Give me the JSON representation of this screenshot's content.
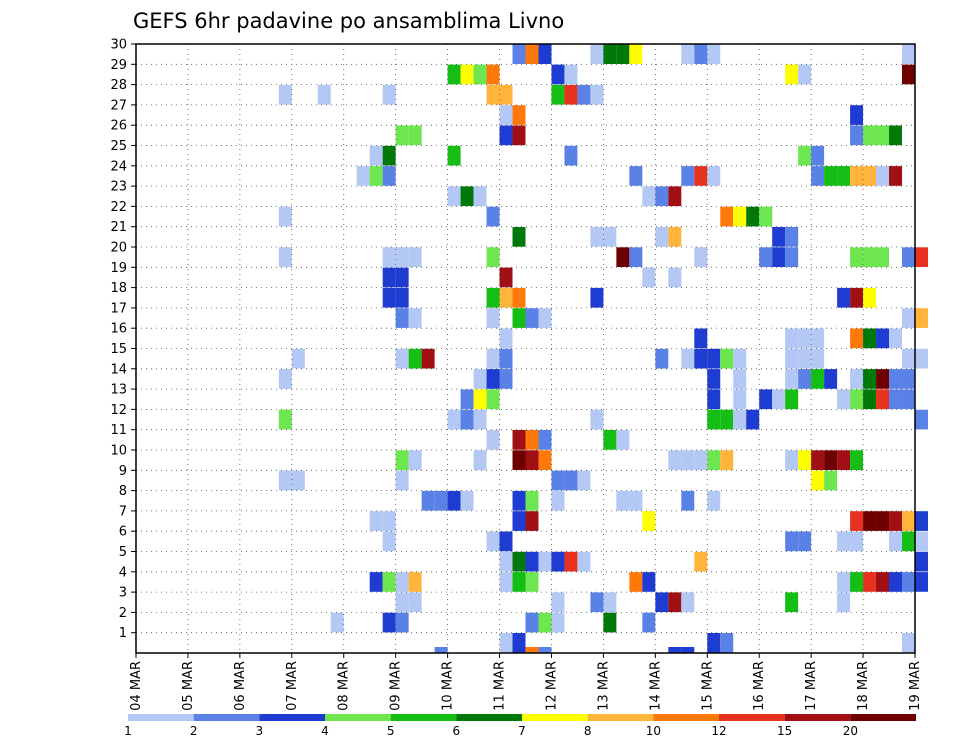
{
  "chart_data": {
    "type": "heatmap",
    "title": "GEFS 6hr padavine po ansamblima Livno",
    "xlabel": "",
    "ylabel": "",
    "x_ticks": [
      "04 MAR",
      "05 MAR",
      "06 MAR",
      "07 MAR",
      "08 MAR",
      "09 MAR",
      "10 MAR",
      "11 MAR",
      "12 MAR",
      "13 MAR",
      "14 MAR",
      "15 MAR",
      "16 MAR",
      "17 MAR",
      "18 MAR",
      "19 MAR"
    ],
    "y_ticks": [
      "1",
      "2",
      "3",
      "4",
      "5",
      "6",
      "7",
      "8",
      "9",
      "10",
      "11",
      "12",
      "13",
      "14",
      "15",
      "16",
      "17",
      "18",
      "19",
      "20",
      "21",
      "22",
      "23",
      "24",
      "25",
      "26",
      "27",
      "28",
      "29",
      "30"
    ],
    "x_range": [
      "04 MAR",
      "19 MAR"
    ],
    "y_range": [
      0,
      30
    ],
    "time_step_hours": 6,
    "grid": true,
    "colorbar": {
      "labels": [
        "1",
        "2",
        "3",
        "4",
        "5",
        "6",
        "7",
        "8",
        "10",
        "12",
        "15",
        "20"
      ],
      "colors": [
        "#b4c8f5",
        "#5a82e6",
        "#1e3cd2",
        "#6ee650",
        "#14be14",
        "#00780a",
        "#ffff00",
        "#ffb43c",
        "#ff780a",
        "#e6321e",
        "#a00f14",
        "#6e0000"
      ]
    },
    "member_cells": {
      "1": [
        [
          "11 MAR 00Z",
          1
        ],
        [
          "11 MAR 06Z",
          3
        ],
        [
          "15 MAR 00Z",
          3
        ],
        [
          "15 MAR 06Z",
          2
        ],
        [
          "18 MAR 18Z",
          1
        ]
      ],
      "2": [
        [
          "07 MAR 18Z",
          1
        ],
        [
          "08 MAR 18Z",
          3
        ],
        [
          "09 MAR 00Z",
          2
        ],
        [
          "11 MAR 12Z",
          2
        ],
        [
          "11 MAR 18Z",
          4
        ],
        [
          "12 MAR 00Z",
          1
        ],
        [
          "13 MAR 00Z",
          6
        ],
        [
          "13 MAR 18Z",
          2
        ]
      ],
      "3": [
        [
          "09 MAR 00Z",
          1
        ],
        [
          "09 MAR 06Z",
          1
        ],
        [
          "12 MAR 00Z",
          1
        ],
        [
          "12 MAR 18Z",
          2
        ],
        [
          "13 MAR 00Z",
          1
        ],
        [
          "14 MAR 00Z",
          3
        ],
        [
          "14 MAR 06Z",
          11
        ],
        [
          "14 MAR 12Z",
          1
        ],
        [
          "16 MAR 12Z",
          5
        ],
        [
          "17 MAR 12Z",
          1
        ]
      ],
      "4": [
        [
          "08 MAR 12Z",
          3
        ],
        [
          "08 MAR 18Z",
          4
        ],
        [
          "09 MAR 00Z",
          1
        ],
        [
          "09 MAR 06Z",
          8
        ],
        [
          "11 MAR 00Z",
          1
        ],
        [
          "11 MAR 06Z",
          5
        ],
        [
          "11 MAR 12Z",
          4
        ],
        [
          "13 MAR 12Z",
          9
        ],
        [
          "13 MAR 18Z",
          3
        ],
        [
          "17 MAR 12Z",
          1
        ],
        [
          "17 MAR 18Z",
          5
        ],
        [
          "18 MAR 00Z",
          10
        ],
        [
          "18 MAR 06Z",
          11
        ],
        [
          "18 MAR 12Z",
          3
        ],
        [
          "18 MAR 18Z",
          2
        ],
        [
          "19 MAR 00Z",
          3
        ]
      ],
      "5": [
        [
          "11 MAR 00Z",
          1
        ],
        [
          "11 MAR 06Z",
          6
        ],
        [
          "11 MAR 12Z",
          3
        ],
        [
          "11 MAR 18Z",
          1
        ],
        [
          "12 MAR 00Z",
          3
        ],
        [
          "12 MAR 06Z",
          10
        ],
        [
          "12 MAR 12Z",
          1
        ],
        [
          "14 MAR 18Z",
          8
        ],
        [
          "19 MAR 00Z",
          3
        ]
      ],
      "6": [
        [
          "08 MAR 18Z",
          1
        ],
        [
          "10 MAR 18Z",
          1
        ],
        [
          "11 MAR 00Z",
          3
        ],
        [
          "16 MAR 12Z",
          2
        ],
        [
          "16 MAR 18Z",
          2
        ],
        [
          "17 MAR 12Z",
          1
        ],
        [
          "17 MAR 18Z",
          1
        ],
        [
          "18 MAR 12Z",
          1
        ],
        [
          "18 MAR 18Z",
          5
        ],
        [
          "19 MAR 00Z",
          1
        ]
      ],
      "7": [
        [
          "08 MAR 12Z",
          1
        ],
        [
          "08 MAR 18Z",
          1
        ],
        [
          "11 MAR 06Z",
          3
        ],
        [
          "11 MAR 12Z",
          11
        ],
        [
          "13 MAR 18Z",
          7
        ],
        [
          "17 MAR 18Z",
          10
        ],
        [
          "18 MAR 00Z",
          12
        ],
        [
          "18 MAR 06Z",
          12
        ],
        [
          "18 MAR 12Z",
          11
        ],
        [
          "18 MAR 18Z",
          8
        ],
        [
          "19 MAR 00Z",
          3
        ]
      ],
      "8": [
        [
          "09 MAR 12Z",
          2
        ],
        [
          "09 MAR 18Z",
          2
        ],
        [
          "10 MAR 00Z",
          3
        ],
        [
          "10 MAR 06Z",
          1
        ],
        [
          "11 MAR 06Z",
          3
        ],
        [
          "11 MAR 12Z",
          4
        ],
        [
          "12 MAR 00Z",
          1
        ],
        [
          "13 MAR 06Z",
          1
        ],
        [
          "13 MAR 12Z",
          1
        ],
        [
          "14 MAR 12Z",
          2
        ],
        [
          "15 MAR 00Z",
          1
        ]
      ],
      "9": [
        [
          "06 MAR 18Z",
          1
        ],
        [
          "07 MAR 00Z",
          1
        ],
        [
          "09 MAR 00Z",
          1
        ],
        [
          "12 MAR 00Z",
          2
        ],
        [
          "12 MAR 06Z",
          2
        ],
        [
          "12 MAR 12Z",
          1
        ],
        [
          "17 MAR 00Z",
          7
        ],
        [
          "17 MAR 06Z",
          4
        ]
      ],
      "10": [
        [
          "09 MAR 00Z",
          4
        ],
        [
          "09 MAR 06Z",
          1
        ],
        [
          "10 MAR 12Z",
          1
        ],
        [
          "11 MAR 06Z",
          12
        ],
        [
          "11 MAR 12Z",
          11
        ],
        [
          "11 MAR 18Z",
          9
        ],
        [
          "14 MAR 06Z",
          1
        ],
        [
          "14 MAR 12Z",
          1
        ],
        [
          "14 MAR 18Z",
          1
        ],
        [
          "15 MAR 00Z",
          4
        ],
        [
          "15 MAR 06Z",
          8
        ],
        [
          "16 MAR 12Z",
          1
        ],
        [
          "16 MAR 18Z",
          7
        ],
        [
          "17 MAR 00Z",
          11
        ],
        [
          "17 MAR 06Z",
          12
        ],
        [
          "17 MAR 12Z",
          11
        ],
        [
          "17 MAR 18Z",
          5
        ]
      ],
      "11": [
        [
          "10 MAR 18Z",
          1
        ],
        [
          "11 MAR 06Z",
          11
        ],
        [
          "11 MAR 12Z",
          9
        ],
        [
          "11 MAR 18Z",
          2
        ],
        [
          "13 MAR 00Z",
          5
        ],
        [
          "13 MAR 06Z",
          1
        ]
      ],
      "12": [
        [
          "06 MAR 18Z",
          4
        ],
        [
          "10 MAR 00Z",
          1
        ],
        [
          "10 MAR 06Z",
          2
        ],
        [
          "10 MAR 12Z",
          1
        ],
        [
          "12 MAR 18Z",
          1
        ],
        [
          "15 MAR 00Z",
          5
        ],
        [
          "15 MAR 06Z",
          5
        ],
        [
          "15 MAR 12Z",
          1
        ],
        [
          "15 MAR 18Z",
          3
        ],
        [
          "19 MAR 00Z",
          2
        ]
      ],
      "13": [
        [
          "10 MAR 06Z",
          2
        ],
        [
          "10 MAR 12Z",
          7
        ],
        [
          "10 MAR 18Z",
          4
        ],
        [
          "15 MAR 00Z",
          3
        ],
        [
          "15 MAR 12Z",
          1
        ],
        [
          "16 MAR 00Z",
          3
        ],
        [
          "16 MAR 06Z",
          1
        ],
        [
          "16 MAR 12Z",
          5
        ],
        [
          "17 MAR 12Z",
          1
        ],
        [
          "17 MAR 18Z",
          4
        ],
        [
          "18 MAR 00Z",
          6
        ],
        [
          "18 MAR 06Z",
          10
        ],
        [
          "18 MAR 12Z",
          2
        ],
        [
          "18 MAR 18Z",
          2
        ]
      ],
      "14": [
        [
          "06 MAR 18Z",
          1
        ],
        [
          "10 MAR 12Z",
          1
        ],
        [
          "10 MAR 18Z",
          3
        ],
        [
          "11 MAR 00Z",
          2
        ],
        [
          "15 MAR 00Z",
          3
        ],
        [
          "15 MAR 12Z",
          1
        ],
        [
          "16 MAR 12Z",
          1
        ],
        [
          "16 MAR 18Z",
          2
        ],
        [
          "17 MAR 00Z",
          5
        ],
        [
          "17 MAR 06Z",
          3
        ],
        [
          "17 MAR 18Z",
          1
        ],
        [
          "18 MAR 00Z",
          6
        ],
        [
          "18 MAR 06Z",
          12
        ],
        [
          "18 MAR 12Z",
          2
        ],
        [
          "18 MAR 18Z",
          2
        ]
      ],
      "15": [
        [
          "07 MAR 00Z",
          1
        ],
        [
          "09 MAR 00Z",
          1
        ],
        [
          "09 MAR 06Z",
          5
        ],
        [
          "09 MAR 12Z",
          11
        ],
        [
          "10 MAR 18Z",
          1
        ],
        [
          "11 MAR 00Z",
          2
        ],
        [
          "14 MAR 00Z",
          2
        ],
        [
          "14 MAR 12Z",
          1
        ],
        [
          "14 MAR 18Z",
          3
        ],
        [
          "15 MAR 00Z",
          3
        ],
        [
          "15 MAR 06Z",
          4
        ],
        [
          "15 MAR 12Z",
          1
        ],
        [
          "16 MAR 12Z",
          1
        ],
        [
          "16 MAR 18Z",
          1
        ],
        [
          "17 MAR 00Z",
          1
        ],
        [
          "18 MAR 18Z",
          1
        ],
        [
          "19 MAR 00Z",
          1
        ]
      ],
      "16": [
        [
          "11 MAR 00Z",
          1
        ],
        [
          "14 MAR 18Z",
          3
        ],
        [
          "16 MAR 12Z",
          1
        ],
        [
          "16 MAR 18Z",
          1
        ],
        [
          "17 MAR 00Z",
          1
        ],
        [
          "17 MAR 18Z",
          9
        ],
        [
          "18 MAR 00Z",
          6
        ],
        [
          "18 MAR 06Z",
          3
        ],
        [
          "18 MAR 12Z",
          1
        ]
      ],
      "17": [
        [
          "09 MAR 00Z",
          2
        ],
        [
          "09 MAR 06Z",
          1
        ],
        [
          "10 MAR 18Z",
          1
        ],
        [
          "11 MAR 06Z",
          5
        ],
        [
          "11 MAR 12Z",
          2
        ],
        [
          "11 MAR 18Z",
          1
        ],
        [
          "18 MAR 18Z",
          1
        ],
        [
          "19 MAR 00Z",
          8
        ]
      ],
      "18": [
        [
          "08 MAR 18Z",
          3
        ],
        [
          "09 MAR 00Z",
          3
        ],
        [
          "10 MAR 18Z",
          5
        ],
        [
          "11 MAR 00Z",
          8
        ],
        [
          "11 MAR 06Z",
          9
        ],
        [
          "12 MAR 18Z",
          3
        ],
        [
          "17 MAR 12Z",
          3
        ],
        [
          "17 MAR 18Z",
          11
        ],
        [
          "18 MAR 00Z",
          7
        ]
      ],
      "19": [
        [
          "08 MAR 18Z",
          3
        ],
        [
          "09 MAR 00Z",
          3
        ],
        [
          "11 MAR 00Z",
          11
        ],
        [
          "13 MAR 18Z",
          1
        ],
        [
          "14 MAR 06Z",
          1
        ]
      ],
      "20": [
        [
          "06 MAR 18Z",
          1
        ],
        [
          "08 MAR 18Z",
          1
        ],
        [
          "09 MAR 00Z",
          1
        ],
        [
          "09 MAR 06Z",
          1
        ],
        [
          "10 MAR 18Z",
          4
        ],
        [
          "13 MAR 06Z",
          12
        ],
        [
          "13 MAR 12Z",
          2
        ],
        [
          "14 MAR 18Z",
          1
        ],
        [
          "16 MAR 00Z",
          2
        ],
        [
          "16 MAR 06Z",
          3
        ],
        [
          "16 MAR 12Z",
          2
        ],
        [
          "17 MAR 18Z",
          4
        ],
        [
          "18 MAR 00Z",
          4
        ],
        [
          "18 MAR 06Z",
          4
        ],
        [
          "18 MAR 18Z",
          2
        ],
        [
          "19 MAR 00Z",
          10
        ]
      ],
      "21": [
        [
          "11 MAR 06Z",
          6
        ],
        [
          "12 MAR 18Z",
          1
        ],
        [
          "13 MAR 00Z",
          1
        ],
        [
          "14 MAR 00Z",
          1
        ],
        [
          "14 MAR 06Z",
          8
        ],
        [
          "16 MAR 06Z",
          3
        ],
        [
          "16 MAR 12Z",
          2
        ]
      ],
      "22": [
        [
          "06 MAR 18Z",
          1
        ],
        [
          "10 MAR 18Z",
          2
        ],
        [
          "15 MAR 06Z",
          9
        ],
        [
          "15 MAR 12Z",
          7
        ],
        [
          "15 MAR 18Z",
          6
        ],
        [
          "16 MAR 00Z",
          4
        ]
      ],
      "23": [
        [
          "10 MAR 00Z",
          1
        ],
        [
          "10 MAR 06Z",
          6
        ],
        [
          "10 MAR 12Z",
          1
        ],
        [
          "13 MAR 18Z",
          1
        ],
        [
          "14 MAR 00Z",
          2
        ],
        [
          "14 MAR 06Z",
          11
        ]
      ],
      "24": [
        [
          "08 MAR 06Z",
          1
        ],
        [
          "08 MAR 12Z",
          4
        ],
        [
          "08 MAR 18Z",
          2
        ],
        [
          "13 MAR 12Z",
          2
        ],
        [
          "14 MAR 12Z",
          2
        ],
        [
          "14 MAR 18Z",
          10
        ],
        [
          "15 MAR 00Z",
          1
        ],
        [
          "17 MAR 00Z",
          2
        ],
        [
          "17 MAR 06Z",
          5
        ],
        [
          "17 MAR 12Z",
          5
        ],
        [
          "17 MAR 18Z",
          8
        ],
        [
          "18 MAR 00Z",
          8
        ],
        [
          "18 MAR 06Z",
          1
        ],
        [
          "18 MAR 12Z",
          11
        ]
      ],
      "25": [
        [
          "08 MAR 12Z",
          1
        ],
        [
          "08 MAR 18Z",
          6
        ],
        [
          "10 MAR 00Z",
          5
        ],
        [
          "12 MAR 06Z",
          2
        ],
        [
          "16 MAR 18Z",
          4
        ],
        [
          "17 MAR 00Z",
          2
        ]
      ],
      "26": [
        [
          "09 MAR 00Z",
          4
        ],
        [
          "09 MAR 06Z",
          4
        ],
        [
          "11 MAR 00Z",
          3
        ],
        [
          "11 MAR 06Z",
          11
        ],
        [
          "17 MAR 18Z",
          2
        ],
        [
          "18 MAR 00Z",
          4
        ],
        [
          "18 MAR 06Z",
          4
        ],
        [
          "18 MAR 12Z",
          6
        ]
      ],
      "27": [
        [
          "11 MAR 00Z",
          1
        ],
        [
          "11 MAR 06Z",
          9
        ],
        [
          "17 MAR 18Z",
          3
        ]
      ],
      "28": [
        [
          "06 MAR 18Z",
          1
        ],
        [
          "07 MAR 12Z",
          1
        ],
        [
          "08 MAR 18Z",
          1
        ],
        [
          "10 MAR 18Z",
          8
        ],
        [
          "11 MAR 00Z",
          8
        ],
        [
          "12 MAR 00Z",
          5
        ],
        [
          "12 MAR 06Z",
          10
        ],
        [
          "12 MAR 12Z",
          2
        ],
        [
          "12 MAR 18Z",
          1
        ]
      ],
      "29": [
        [
          "10 MAR 00Z",
          5
        ],
        [
          "10 MAR 06Z",
          7
        ],
        [
          "10 MAR 12Z",
          4
        ],
        [
          "10 MAR 18Z",
          9
        ],
        [
          "12 MAR 00Z",
          3
        ],
        [
          "12 MAR 06Z",
          1
        ],
        [
          "16 MAR 12Z",
          7
        ],
        [
          "16 MAR 18Z",
          1
        ],
        [
          "18 MAR 18Z",
          12
        ]
      ],
      "30": [
        [
          "11 MAR 06Z",
          2
        ],
        [
          "11 MAR 12Z",
          9
        ],
        [
          "11 MAR 18Z",
          3
        ],
        [
          "12 MAR 18Z",
          1
        ],
        [
          "13 MAR 00Z",
          6
        ],
        [
          "13 MAR 06Z",
          6
        ],
        [
          "13 MAR 12Z",
          7
        ],
        [
          "14 MAR 12Z",
          1
        ],
        [
          "14 MAR 18Z",
          2
        ],
        [
          "15 MAR 00Z",
          1
        ],
        [
          "18 MAR 18Z",
          1
        ]
      ]
    },
    "row_zero_cells": [
      [
        "09 MAR 18Z",
        2
      ],
      [
        "11 MAR 12Z",
        9
      ],
      [
        "11 MAR 18Z",
        2
      ],
      [
        "14 MAR 06Z",
        3
      ],
      [
        "14 MAR 12Z",
        3
      ]
    ]
  }
}
